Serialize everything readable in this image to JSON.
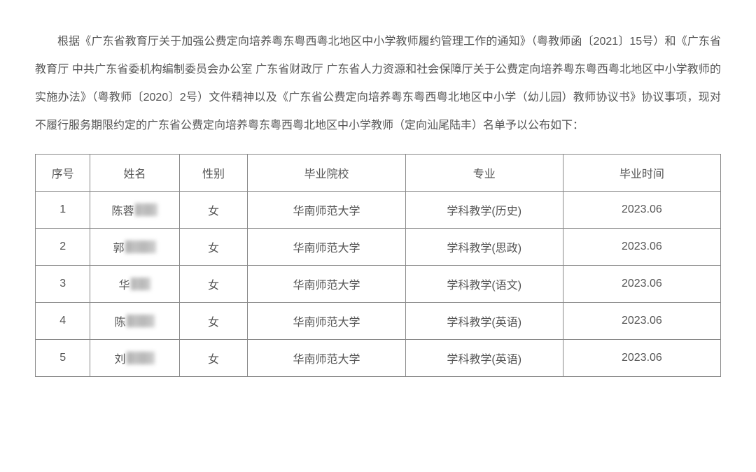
{
  "paragraph": "根据《广东省教育厅关于加强公费定向培养粤东粤西粤北地区中小学教师履约管理工作的通知》（粤教师函〔2021〕15号）和《广东省教育厅 中共广东省委机构编制委员会办公室 广东省财政厅 广东省人力资源和社会保障厅关于公费定向培养粤东粤西粤北地区中小学教师的实施办法》（粤教师〔2020〕2号）文件精神以及《广东省公费定向培养粤东粤西粤北地区中小学（幼儿园）教师协议书》协议事项，现对不履行服务期限约定的广东省公费定向培养粤东粤西粤北地区中小学教师（定向汕尾陆丰）名单予以公布如下：",
  "table": {
    "headers": {
      "seq": "序号",
      "name": "姓名",
      "gender": "性别",
      "school": "毕业院校",
      "major": "专业",
      "gradtime": "毕业时间"
    },
    "rows": [
      {
        "seq": "1",
        "name_prefix": "陈蓉",
        "gender": "女",
        "school": "华南师范大学",
        "major": "学科教学(历史)",
        "gradtime": "2023.06",
        "redact_width": 32
      },
      {
        "seq": "2",
        "name_prefix": "郭",
        "gender": "女",
        "school": "华南师范大学",
        "major": "学科教学(思政)",
        "gradtime": "2023.06",
        "redact_width": 44
      },
      {
        "seq": "3",
        "name_prefix": "华",
        "gender": "女",
        "school": "华南师范大学",
        "major": "学科教学(语文)",
        "gradtime": "2023.06",
        "redact_width": 28
      },
      {
        "seq": "4",
        "name_prefix": "陈",
        "gender": "女",
        "school": "华南师范大学",
        "major": "学科教学(英语)",
        "gradtime": "2023.06",
        "redact_width": 40
      },
      {
        "seq": "5",
        "name_prefix": "刘",
        "gender": "女",
        "school": "华南师范大学",
        "major": "学科教学(英语)",
        "gradtime": "2023.06",
        "redact_width": 40
      }
    ],
    "column_widths": {
      "seq": "8%",
      "name": "13%",
      "gender": "10%",
      "school": "23%",
      "major": "23%",
      "gradtime": "23%"
    },
    "border_color": "#888888",
    "text_color": "#555555",
    "font_size": 16,
    "cell_padding": 14
  },
  "styling": {
    "body_bg": "#ffffff",
    "body_text_color": "#555555",
    "paragraph_fontsize": 16,
    "paragraph_lineheight": 2.5,
    "paragraph_indent_em": 2
  }
}
